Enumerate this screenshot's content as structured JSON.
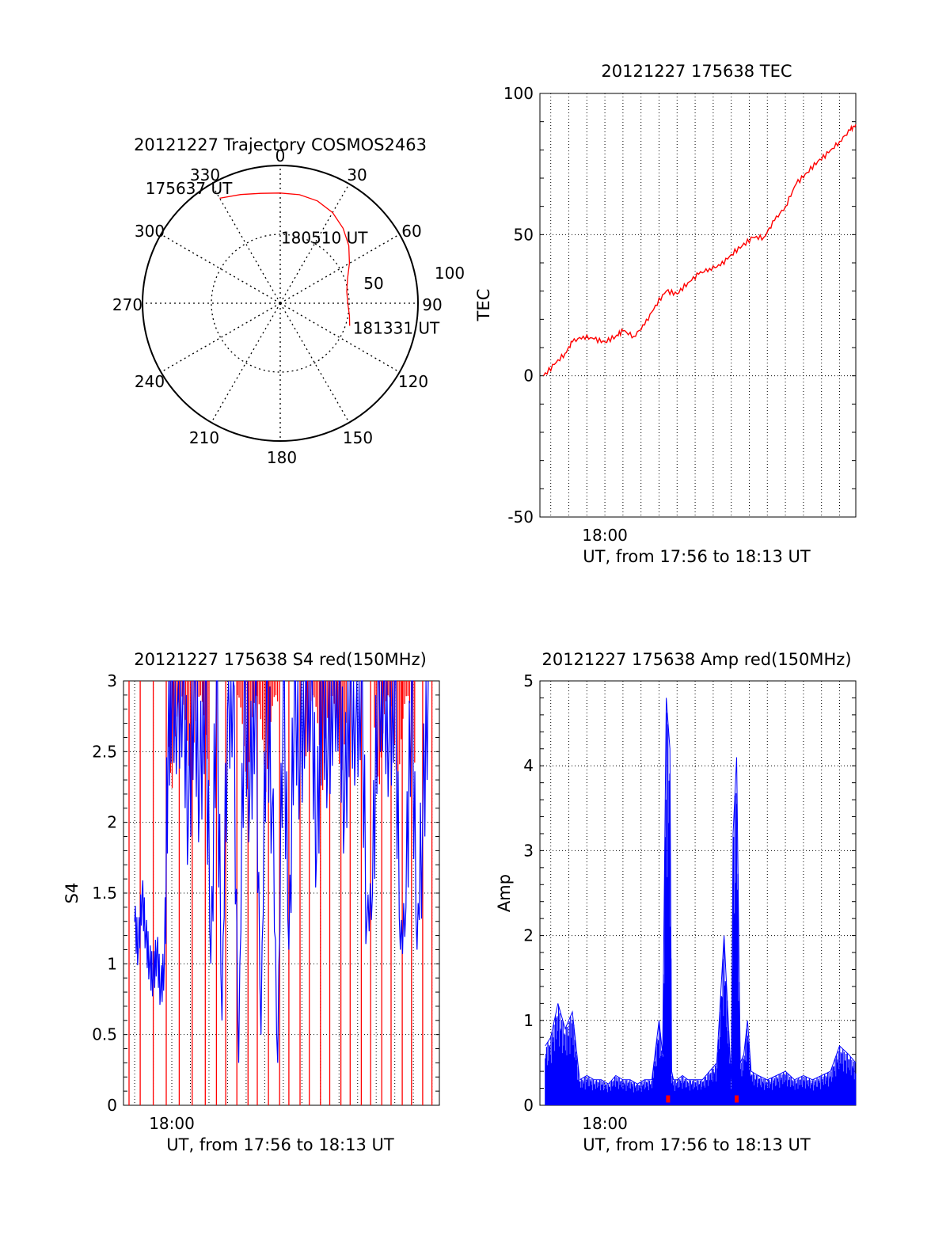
{
  "chart_data": [
    {
      "id": "polar",
      "type": "scatter",
      "subtype": "polar-trajectory",
      "title": "20121227 Trajectory COSMOS2463",
      "angle_labels": [
        "0",
        "30",
        "60",
        "90",
        "120",
        "150",
        "180",
        "210",
        "240",
        "270",
        "300",
        "330"
      ],
      "radial_labels": [
        "50",
        "100"
      ],
      "radial_max": 100,
      "grid": true,
      "series": [
        {
          "color": "#ff0000",
          "points": [
            [
              -30,
              88
            ],
            [
              -20,
              84
            ],
            [
              -10,
              81
            ],
            [
              0,
              80
            ],
            [
              10,
              80
            ],
            [
              20,
              79
            ],
            [
              30,
              76
            ],
            [
              40,
              71
            ],
            [
              50,
              65
            ],
            [
              60,
              58
            ],
            [
              70,
              52
            ],
            [
              80,
              49
            ],
            [
              90,
              49
            ],
            [
              100,
              51
            ],
            [
              108,
              53
            ]
          ]
        }
      ],
      "annotations": [
        {
          "text": "175637 UT",
          "az": -29,
          "r": 88
        },
        {
          "text": "180510 UT",
          "az": 47,
          "r": 62
        },
        {
          "text": "181331 UT",
          "az": 108,
          "r": 53
        }
      ]
    },
    {
      "id": "tec",
      "type": "line",
      "title": "20121227 175638 TEC",
      "ylabel": "TEC",
      "xlabel": "UT, from 17:56 to 18:13 UT",
      "xlim": [
        -3.6,
        13.9
      ],
      "ylim": [
        -50,
        100
      ],
      "yticks": [
        -50,
        0,
        50,
        100
      ],
      "xtick_labels": [
        {
          "x": 0,
          "label": "18:00"
        }
      ],
      "grid": true,
      "series": [
        {
          "color": "#ff0000",
          "x": [
            -3.4,
            -2.8,
            -2.2,
            -1.8,
            -1.2,
            -0.6,
            0,
            0.6,
            1.0,
            1.6,
            2.2,
            2.8,
            3.4,
            4.0,
            4.6,
            5.2,
            5.8,
            6.4,
            7.0,
            7.6,
            8.2,
            8.8,
            9.4,
            10.0,
            10.6,
            11.2,
            11.8,
            12.4,
            13.0,
            13.6,
            13.9
          ],
          "y": [
            0,
            4,
            8,
            12,
            14,
            13,
            12,
            14,
            16,
            14,
            18,
            25,
            30,
            29,
            33,
            36,
            38,
            39,
            43,
            46,
            49,
            49,
            55,
            60,
            68,
            72,
            76,
            79,
            83,
            87,
            89
          ]
        }
      ]
    },
    {
      "id": "s4",
      "type": "line",
      "title": "20121227 175638 S4 red(150MHz)",
      "ylabel": "S4",
      "xlabel": "UT, from 17:56 to 18:13 UT",
      "xlim": [
        -2.6,
        14.4
      ],
      "ylim": [
        0,
        3
      ],
      "yticks": [
        0,
        0.5,
        1,
        1.5,
        2,
        2.5,
        3
      ],
      "xtick_labels": [
        {
          "x": 0,
          "label": "18:00"
        }
      ],
      "grid": true,
      "series": [
        {
          "color": "#0000ff",
          "x": [
            -2.0,
            -1.8,
            -1.6,
            -1.4,
            -1.2,
            -1.0,
            -0.8,
            -0.6,
            -0.4,
            -0.2,
            0,
            0.3,
            0.6,
            0.9,
            1.2,
            1.5,
            1.8,
            2.1,
            2.4,
            2.7,
            3.0,
            3.3,
            3.6,
            3.9,
            4.2,
            4.5,
            4.8,
            5.1,
            5.4,
            5.7,
            6.0,
            6.3,
            6.6,
            6.9,
            7.2,
            7.5,
            7.8,
            8.1,
            8.4,
            8.7,
            9.0,
            9.3,
            9.6,
            9.9,
            10.2,
            10.5,
            10.8,
            11.1,
            11.4,
            11.7,
            12.0,
            12.3,
            12.6,
            12.9,
            13.2,
            13.5,
            13.8
          ],
          "y": [
            1.3,
            1.1,
            1.5,
            1.2,
            1.0,
            0.9,
            1.1,
            0.8,
            1.0,
            2.6,
            3.0,
            2.8,
            3.0,
            2.0,
            3.0,
            2.2,
            3.0,
            1.0,
            3.0,
            0.6,
            2.8,
            3.0,
            0.3,
            3.0,
            2.2,
            3.0,
            0.5,
            3.0,
            2.1,
            0.3,
            3.0,
            1.1,
            3.0,
            2.4,
            3.0,
            3.0,
            1.8,
            3.0,
            2.5,
            3.0,
            3.0,
            2.1,
            3.0,
            2.7,
            3.0,
            1.3,
            1.5,
            3.0,
            3.0,
            2.6,
            3.0,
            1.1,
            1.4,
            3.0,
            1.1,
            2.0,
            3.0
          ]
        },
        {
          "color": "#ff0000",
          "x": [
            -2.3,
            -1.7,
            -1.0,
            -0.3,
            0.4,
            1.1,
            1.8,
            2.4,
            2.9,
            3.5,
            4.1,
            4.6,
            5.2,
            5.8,
            6.3,
            6.9,
            7.4,
            8.0,
            8.5,
            9.1,
            9.6,
            10.2,
            10.7,
            11.3,
            11.8,
            12.4,
            12.9,
            13.5,
            14.0
          ],
          "y": [
            0,
            3,
            0,
            3,
            0,
            3,
            0,
            3,
            0,
            3,
            0,
            3,
            0,
            3,
            0,
            3,
            0,
            3,
            0,
            3,
            0,
            3,
            0,
            3,
            0,
            3,
            0,
            3,
            0
          ]
        }
      ]
    },
    {
      "id": "amp",
      "type": "line",
      "title": "20121227 175638 Amp red(150MHz)",
      "ylabel": "Amp",
      "xlabel": "UT, from 17:56 to 18:13 UT",
      "xlim": [
        -3.6,
        13.9
      ],
      "ylim": [
        0,
        5
      ],
      "yticks": [
        0,
        1,
        2,
        3,
        4,
        5
      ],
      "xtick_labels": [
        {
          "x": 0,
          "label": "18:00"
        }
      ],
      "grid": true,
      "series": [
        {
          "color": "#0000ff",
          "x": [
            -3.3,
            -3.0,
            -2.6,
            -2.2,
            -1.8,
            -1.4,
            -1.0,
            -0.6,
            -0.2,
            0.2,
            0.6,
            1.0,
            1.4,
            1.8,
            2.2,
            2.6,
            3.0,
            3.2,
            3.4,
            3.6,
            3.7,
            3.8,
            4.0,
            4.3,
            4.6,
            5.0,
            5.4,
            5.8,
            6.2,
            6.6,
            7.0,
            7.1,
            7.3,
            7.5,
            7.7,
            7.9,
            8.1,
            8.5,
            9.0,
            9.5,
            10.0,
            10.5,
            11.0,
            11.5,
            12.0,
            12.5,
            13.0,
            13.5,
            13.9
          ],
          "y": [
            0.7,
            0.8,
            1.2,
            0.9,
            1.1,
            0.3,
            0.35,
            0.3,
            0.3,
            0.25,
            0.35,
            0.3,
            0.3,
            0.25,
            0.3,
            0.3,
            1.0,
            0.6,
            4.8,
            4.2,
            0.4,
            0.3,
            0.3,
            0.35,
            0.3,
            0.3,
            0.3,
            0.4,
            0.5,
            2.0,
            0.3,
            3.2,
            4.1,
            0.5,
            0.6,
            1.0,
            0.4,
            0.35,
            0.3,
            0.35,
            0.4,
            0.3,
            0.35,
            0.3,
            0.35,
            0.4,
            0.7,
            0.6,
            0.5
          ]
        },
        {
          "color": "#ff0000",
          "x": [
            3.5,
            7.3
          ],
          "y": [
            0.07,
            0.07
          ]
        }
      ]
    }
  ]
}
